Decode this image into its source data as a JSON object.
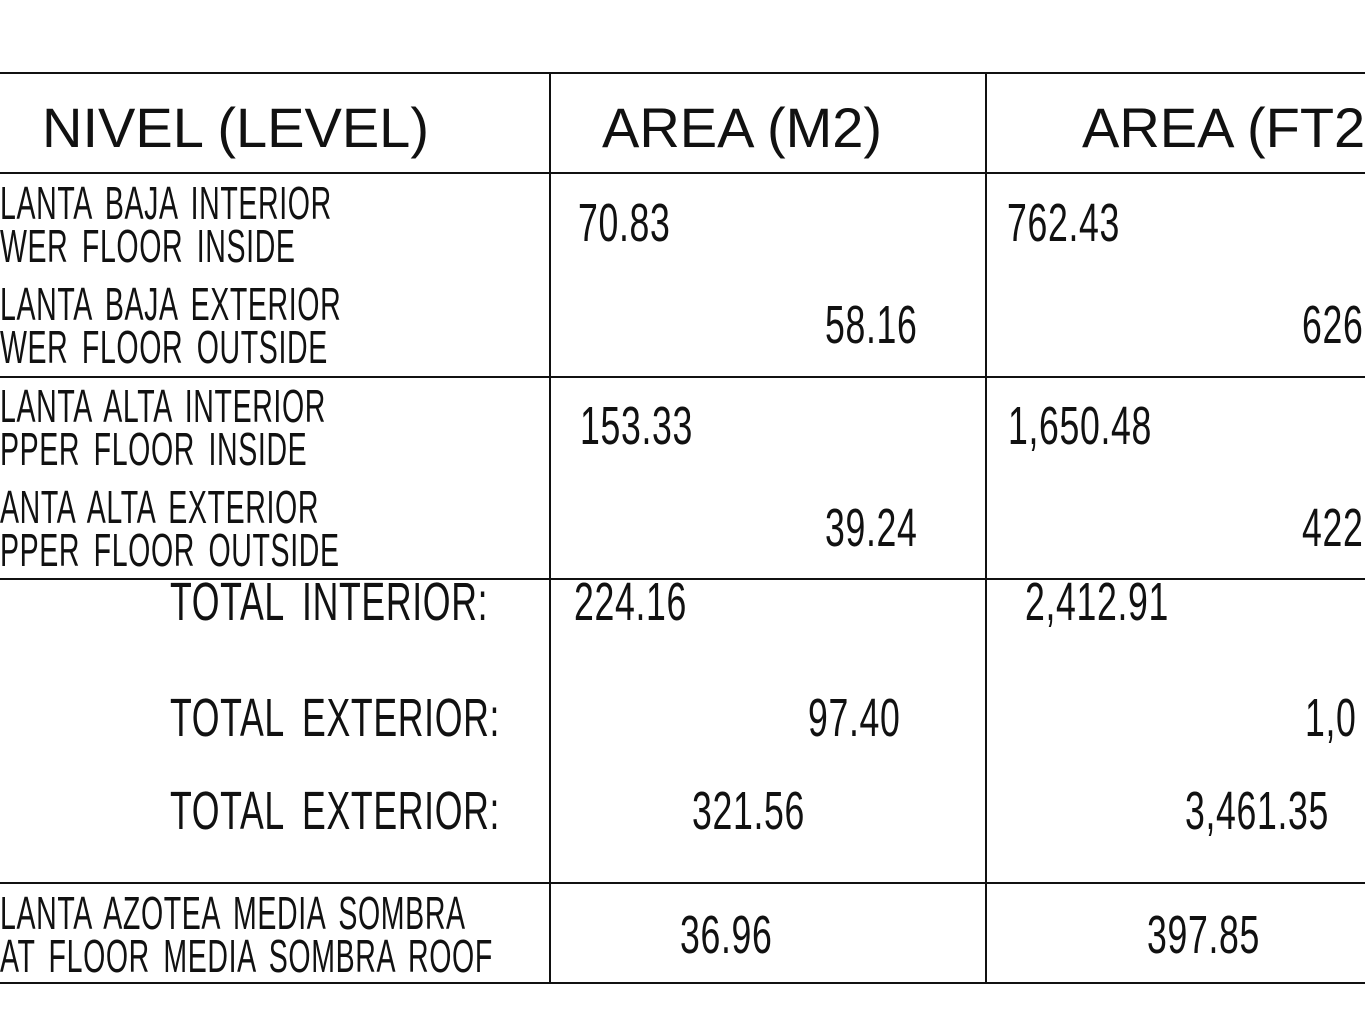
{
  "header": {
    "level": "NIVEL (LEVEL)",
    "area_m2": "AREA (M2)",
    "area_ft2": "AREA (FT2"
  },
  "rows": [
    {
      "label_es": "LANTA  BAJA  INTERIOR",
      "label_en": "WER  FLOOR  INSIDE",
      "m2": "70.83",
      "ft2": "762.43"
    },
    {
      "label_es": "LANTA  BAJA  EXTERIOR",
      "label_en": "WER  FLOOR  OUTSIDE",
      "m2": "58.16",
      "ft2": "626"
    },
    {
      "label_es": "LANTA  ALTA  INTERIOR",
      "label_en": "PPER  FLOOR  INSIDE",
      "m2": "153.33",
      "ft2": "1,650.48"
    },
    {
      "label_es": "ANTA  ALTA  EXTERIOR",
      "label_en": "PPER  FLOOR  OUTSIDE",
      "m2": "39.24",
      "ft2": "422"
    }
  ],
  "totals": [
    {
      "label": "TOTAL  INTERIOR:",
      "m2": "224.16",
      "ft2": "2,412.91"
    },
    {
      "label": "TOTAL  EXTERIOR:",
      "m2": "97.40",
      "ft2": "1,0"
    },
    {
      "label": "TOTAL  EXTERIOR:",
      "m2": "321.56",
      "ft2": "3,461.35"
    }
  ],
  "roof": {
    "label_es": "LANTA  AZOTEA  MEDIA  SOMBRA",
    "label_en": "AT  FLOOR  MEDIA  SOMBRA  ROOF",
    "m2": "36.96",
    "ft2": "397.85"
  }
}
